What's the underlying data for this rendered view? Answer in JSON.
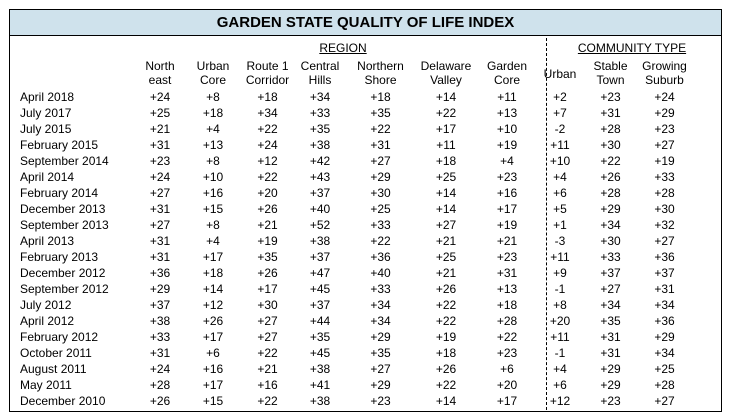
{
  "title": "GARDEN STATE QUALITY OF LIFE INDEX",
  "groups": {
    "region": "REGION",
    "community": "COMMUNITY TYPE"
  },
  "columns": [
    [
      "North",
      "east"
    ],
    [
      "Urban",
      "Core"
    ],
    [
      "Route 1",
      "Corridor"
    ],
    [
      "Central",
      "Hills"
    ],
    [
      "Northern",
      "Shore"
    ],
    [
      "Delaware",
      "Valley"
    ],
    [
      "Garden",
      "Core"
    ],
    [
      "Urban",
      ""
    ],
    [
      "Stable",
      "Town"
    ],
    [
      "Growing",
      "Suburb"
    ]
  ],
  "rows": [
    [
      "April 2018",
      "+24",
      "+8",
      "+18",
      "+34",
      "+18",
      "+14",
      "+11",
      "+2",
      "+23",
      "+24"
    ],
    [
      "July 2017",
      "+25",
      "+18",
      "+34",
      "+33",
      "+35",
      "+22",
      "+13",
      "+7",
      "+31",
      "+29"
    ],
    [
      "July 2015",
      "+21",
      "+4",
      "+22",
      "+35",
      "+22",
      "+17",
      "+10",
      "-2",
      "+28",
      "+23"
    ],
    [
      "February 2015",
      "+31",
      "+13",
      "+24",
      "+38",
      "+31",
      "+11",
      "+19",
      "+11",
      "+30",
      "+27"
    ],
    [
      "September 2014",
      "+23",
      "+8",
      "+12",
      "+42",
      "+27",
      "+18",
      "+4",
      "+10",
      "+22",
      "+19"
    ],
    [
      "April 2014",
      "+24",
      "+10",
      "+22",
      "+43",
      "+29",
      "+25",
      "+23",
      "+4",
      "+26",
      "+33"
    ],
    [
      "February 2014",
      "+27",
      "+16",
      "+20",
      "+37",
      "+30",
      "+14",
      "+16",
      "+6",
      "+28",
      "+28"
    ],
    [
      "December 2013",
      "+31",
      "+15",
      "+26",
      "+40",
      "+25",
      "+14",
      "+17",
      "+5",
      "+29",
      "+30"
    ],
    [
      "September 2013",
      "+27",
      "+8",
      "+21",
      "+52",
      "+33",
      "+27",
      "+19",
      "+1",
      "+34",
      "+32"
    ],
    [
      "April 2013",
      "+31",
      "+4",
      "+19",
      "+38",
      "+22",
      "+21",
      "+21",
      "-3",
      "+30",
      "+27"
    ],
    [
      "February 2013",
      "+31",
      "+17",
      "+35",
      "+37",
      "+36",
      "+25",
      "+23",
      "+11",
      "+33",
      "+36"
    ],
    [
      "December 2012",
      "+36",
      "+18",
      "+26",
      "+47",
      "+40",
      "+21",
      "+31",
      "+9",
      "+37",
      "+37"
    ],
    [
      "September 2012",
      "+29",
      "+14",
      "+17",
      "+45",
      "+33",
      "+26",
      "+13",
      "-1",
      "+27",
      "+31"
    ],
    [
      "July 2012",
      "+37",
      "+12",
      "+30",
      "+37",
      "+34",
      "+22",
      "+18",
      "+8",
      "+34",
      "+34"
    ],
    [
      "April 2012",
      "+38",
      "+26",
      "+27",
      "+44",
      "+34",
      "+22",
      "+28",
      "+20",
      "+35",
      "+36"
    ],
    [
      "February 2012",
      "+33",
      "+17",
      "+27",
      "+35",
      "+29",
      "+19",
      "+22",
      "+11",
      "+31",
      "+29"
    ],
    [
      "October 2011",
      "+31",
      "+6",
      "+22",
      "+45",
      "+35",
      "+18",
      "+23",
      "-1",
      "+31",
      "+34"
    ],
    [
      "August 2011",
      "+24",
      "+16",
      "+21",
      "+38",
      "+27",
      "+26",
      "+6",
      "+4",
      "+29",
      "+25"
    ],
    [
      "May 2011",
      "+28",
      "+17",
      "+16",
      "+41",
      "+29",
      "+22",
      "+20",
      "+6",
      "+29",
      "+28"
    ],
    [
      "December 2010",
      "+26",
      "+15",
      "+22",
      "+38",
      "+23",
      "+14",
      "+17",
      "+12",
      "+23",
      "+27"
    ]
  ]
}
